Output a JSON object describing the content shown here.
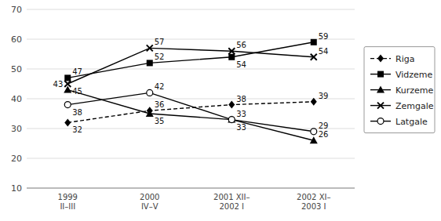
{
  "chart_data": {
    "type": "line",
    "categories": [
      "1999\nII–III",
      "2000\nIV–V",
      "2001 XII–\n2002 I",
      "2002 XI–\n2003 I"
    ],
    "series": [
      {
        "name": "Riga",
        "color": "#000000",
        "line_style": "dashed",
        "marker": "diamond",
        "values": [
          32,
          36,
          38,
          39
        ]
      },
      {
        "name": "Vidzeme",
        "color": "#000000",
        "line_style": "solid",
        "marker": "square",
        "values": [
          47,
          52,
          54,
          59
        ]
      },
      {
        "name": "Kurzeme",
        "color": "#000000",
        "line_style": "solid",
        "marker": "triangle",
        "values": [
          43,
          35,
          33,
          26
        ]
      },
      {
        "name": "Zemgale",
        "color": "#000000",
        "line_style": "solid",
        "marker": "x",
        "values": [
          45,
          57,
          56,
          54
        ]
      },
      {
        "name": "Latgale",
        "color": "#000000",
        "line_style": "solid",
        "marker": "circle",
        "values": [
          38,
          42,
          33,
          29
        ]
      }
    ],
    "ylim": [
      10,
      70
    ],
    "yticks": [
      10,
      20,
      30,
      40,
      50,
      60,
      70
    ],
    "grid": true,
    "legend": "right",
    "data_labels": true
  }
}
